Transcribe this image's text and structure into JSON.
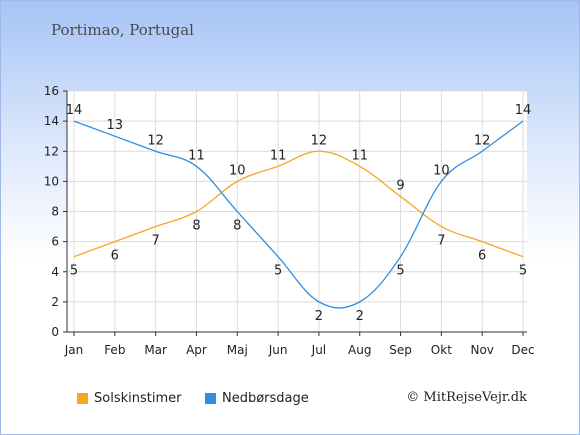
{
  "header": {
    "title": "Portimao, Portugal"
  },
  "colors": {
    "sun": "#f5a623",
    "rain": "#2f8fe0"
  },
  "chart_data": {
    "type": "line",
    "categories": [
      "Jan",
      "Feb",
      "Mar",
      "Apr",
      "Maj",
      "Jun",
      "Jul",
      "Aug",
      "Sep",
      "Okt",
      "Nov",
      "Dec"
    ],
    "ylim": [
      0,
      16
    ],
    "yticks": [
      0,
      2,
      4,
      6,
      8,
      10,
      12,
      14,
      16
    ],
    "series": [
      {
        "name": "Solskinstimer",
        "values": [
          5,
          6,
          7,
          8,
          10,
          11,
          12,
          11,
          9,
          7,
          6,
          5
        ]
      },
      {
        "name": "Nedbørsdage",
        "values": [
          14,
          13,
          12,
          11,
          8,
          5,
          2,
          2,
          5,
          10,
          12,
          14
        ]
      }
    ]
  },
  "legend": {
    "sun_label": "Solskinstimer",
    "rain_label": "Nedbørsdage"
  },
  "footer": {
    "copyright": "© MitRejseVejr.dk"
  }
}
